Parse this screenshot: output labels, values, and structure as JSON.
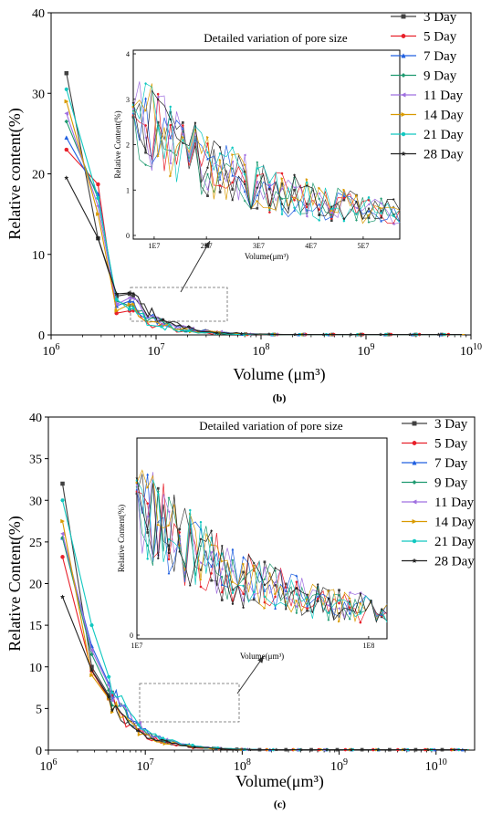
{
  "chart_data": [
    {
      "type": "line",
      "panel_label": "(b)",
      "xlabel": "Volume (μm³)",
      "ylabel": "Relative content(%)",
      "xscale": "log",
      "xlim": [
        1000000,
        10000000000
      ],
      "ylim": [
        0,
        40
      ],
      "x_ticks": [
        {
          "m": "10",
          "e": "6"
        },
        {
          "m": "10",
          "e": "7"
        },
        {
          "m": "10",
          "e": "8"
        },
        {
          "m": "10",
          "e": "9"
        },
        {
          "m": "10",
          "e": "10"
        }
      ],
      "y_ticks": [
        "0",
        "10",
        "20",
        "30",
        "40"
      ],
      "legend_position": "right",
      "series": [
        {
          "name": "3 Day",
          "color": "#404040",
          "marker": "square"
        },
        {
          "name": "5 Day",
          "color": "#e8202a",
          "marker": "circle"
        },
        {
          "name": "7 Day",
          "color": "#2060e0",
          "marker": "triangle"
        },
        {
          "name": "9 Day",
          "color": "#1e9a70",
          "marker": "diamond"
        },
        {
          "name": "11 Day",
          "color": "#a070e0",
          "marker": "triangle-left"
        },
        {
          "name": "14 Day",
          "color": "#d99a00",
          "marker": "triangle-right"
        },
        {
          "name": "21 Day",
          "color": "#10c8c0",
          "marker": "hexagon"
        },
        {
          "name": "28 Day",
          "color": "#202020",
          "marker": "star"
        }
      ],
      "start_values": [
        {
          "x": 1400000,
          "y": [
            32.5,
            23,
            24.5,
            26.5,
            27.5,
            29,
            30.5,
            19.5
          ]
        },
        {
          "x": 2800000,
          "y": [
            12,
            18.7,
            17.5,
            17,
            16,
            15,
            17,
            12
          ]
        },
        {
          "x": 4200000,
          "y": [
            4.8,
            2.7,
            3.6,
            4.2,
            3.8,
            3,
            4.4,
            5.1
          ]
        },
        {
          "x": 5600000,
          "y": [
            5.1,
            3,
            4.2,
            3.6,
            4.6,
            3.8,
            3.2,
            5.2
          ]
        }
      ],
      "inset": {
        "title": "Detailed variation of pore size",
        "xlabel": "Volume(μm³)",
        "ylabel": "Relative Content(%)",
        "xlim": [
          6000000,
          57000000
        ],
        "ylim": [
          0,
          4
        ],
        "x_ticks": [
          "1E7",
          "2E7",
          "3E7",
          "4E7",
          "5E7"
        ],
        "y_ticks": [
          "0",
          "1",
          "2",
          "3",
          "4"
        ],
        "peak_values": {
          "3 Day": 3.65,
          "28 Day": 3.35
        }
      }
    },
    {
      "type": "line",
      "panel_label": "(c)",
      "xlabel": "Volume(μm³)",
      "ylabel": "Relative Content(%)",
      "xscale": "log",
      "xlim": [
        1000000,
        25000000000
      ],
      "ylim": [
        0,
        40
      ],
      "x_ticks": [
        {
          "m": "10",
          "e": "6"
        },
        {
          "m": "10",
          "e": "7"
        },
        {
          "m": "10",
          "e": "8"
        },
        {
          "m": "10",
          "e": "9"
        },
        {
          "m": "10",
          "e": "10"
        }
      ],
      "y_ticks": [
        "0",
        "5",
        "10",
        "15",
        "20",
        "25",
        "30",
        "35",
        "40"
      ],
      "legend_position": "right",
      "series": [
        {
          "name": "3 Day",
          "color": "#404040",
          "marker": "square"
        },
        {
          "name": "5 Day",
          "color": "#e8202a",
          "marker": "circle"
        },
        {
          "name": "7 Day",
          "color": "#2060e0",
          "marker": "triangle"
        },
        {
          "name": "9 Day",
          "color": "#1e9a70",
          "marker": "diamond"
        },
        {
          "name": "11 Day",
          "color": "#a070e0",
          "marker": "triangle-left"
        },
        {
          "name": "14 Day",
          "color": "#d99a00",
          "marker": "triangle-right"
        },
        {
          "name": "21 Day",
          "color": "#10c8c0",
          "marker": "hexagon"
        },
        {
          "name": "28 Day",
          "color": "#202020",
          "marker": "star"
        }
      ],
      "start_values": [
        {
          "x": 1400000,
          "y": [
            32,
            23.2,
            25.5,
            25.5,
            26,
            27.5,
            30,
            18.4
          ]
        },
        {
          "x": 2800000,
          "y": [
            10,
            9.5,
            12.5,
            11.5,
            12,
            9,
            15,
            9.6
          ]
        },
        {
          "x": 4200000,
          "y": [
            6.6,
            6.2,
            8,
            7.2,
            7.8,
            6.2,
            8.8,
            6.4
          ]
        }
      ],
      "inset": {
        "title": "Detailed variation of pore size",
        "xlabel": "Volume(μm³)",
        "ylabel": "Relative Content(%)",
        "xlim": [
          10000000,
          120000000
        ],
        "ylim": [
          0,
          5
        ],
        "x_ticks": [
          "1E7",
          "1E8"
        ],
        "y_ticks": [
          "0"
        ]
      }
    }
  ]
}
